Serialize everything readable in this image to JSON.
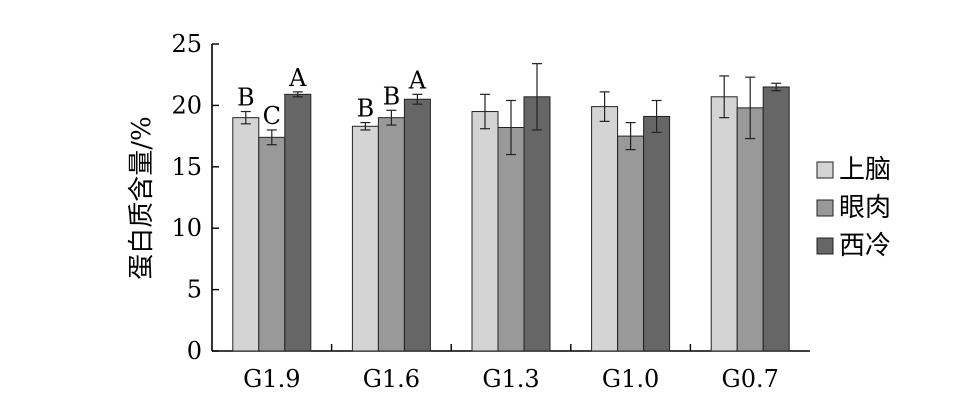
{
  "chart_data": {
    "type": "bar",
    "title": "",
    "xlabel": "",
    "ylabel": "蛋白质含量/%",
    "ylim": [
      0,
      25
    ],
    "yticks": [
      0,
      5,
      10,
      15,
      20,
      25
    ],
    "grid": false,
    "legend_position": "right",
    "categories": [
      "G1.9",
      "G1.6",
      "G1.3",
      "G1.0",
      "G0.7"
    ],
    "series": [
      {
        "name": "上脑",
        "color": "#d4d4d4",
        "values": [
          19.0,
          18.3,
          19.5,
          19.9,
          20.7
        ],
        "errors": [
          0.5,
          0.3,
          1.4,
          1.2,
          1.7
        ],
        "letters": [
          "B",
          "B",
          "",
          "",
          ""
        ]
      },
      {
        "name": "眼肉",
        "color": "#999999",
        "values": [
          17.4,
          19.0,
          18.2,
          17.5,
          19.8
        ],
        "errors": [
          0.6,
          0.6,
          2.2,
          1.1,
          2.5
        ],
        "letters": [
          "C",
          "B",
          "",
          "",
          ""
        ]
      },
      {
        "name": "西冷",
        "color": "#666666",
        "values": [
          20.9,
          20.5,
          20.7,
          19.1,
          21.5
        ],
        "errors": [
          0.2,
          0.4,
          2.7,
          1.3,
          0.3
        ],
        "letters": [
          "A",
          "A",
          "",
          "",
          ""
        ]
      }
    ]
  }
}
